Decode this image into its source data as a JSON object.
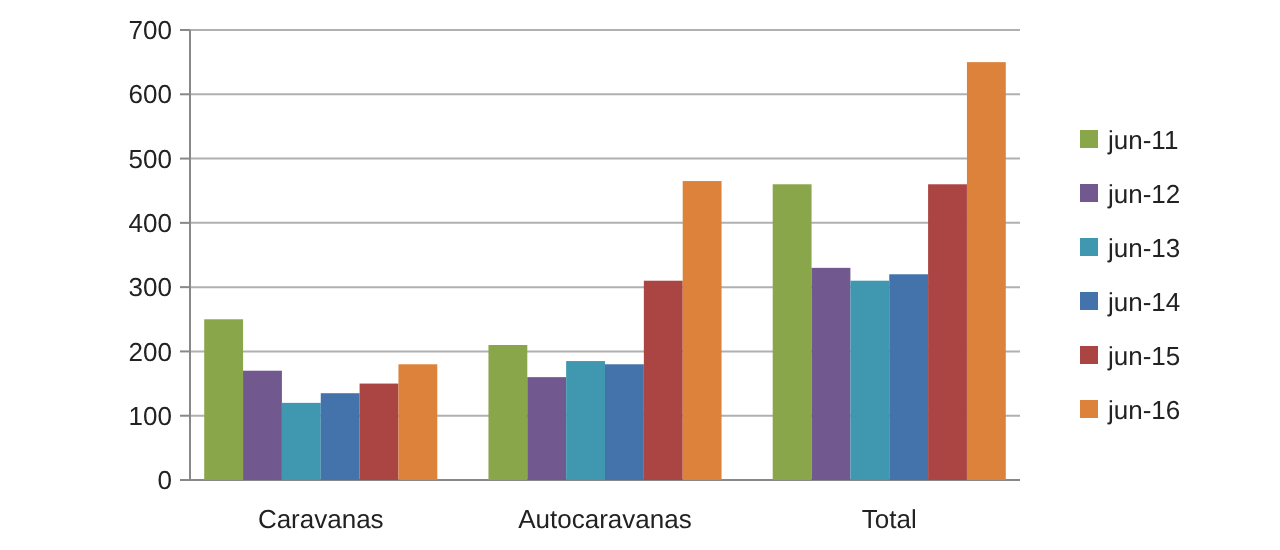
{
  "chart_data": {
    "type": "bar",
    "categories": [
      "Caravanas",
      "Autocaravanas",
      "Total"
    ],
    "series": [
      {
        "name": "jun-11",
        "color": "#8aa64b",
        "values": [
          250,
          210,
          460
        ]
      },
      {
        "name": "jun-12",
        "color": "#71588f",
        "values": [
          170,
          160,
          330
        ]
      },
      {
        "name": "jun-13",
        "color": "#3f97b0",
        "values": [
          120,
          185,
          310
        ]
      },
      {
        "name": "jun-14",
        "color": "#4373aa",
        "values": [
          135,
          180,
          320
        ]
      },
      {
        "name": "jun-15",
        "color": "#aa4543",
        "values": [
          150,
          310,
          460
        ]
      },
      {
        "name": "jun-16",
        "color": "#dc823a",
        "values": [
          180,
          465,
          650
        ]
      }
    ],
    "ylim": [
      0,
      700
    ],
    "yticks": [
      0,
      100,
      200,
      300,
      400,
      500,
      600,
      700
    ],
    "grid": "y",
    "legend": "right"
  }
}
